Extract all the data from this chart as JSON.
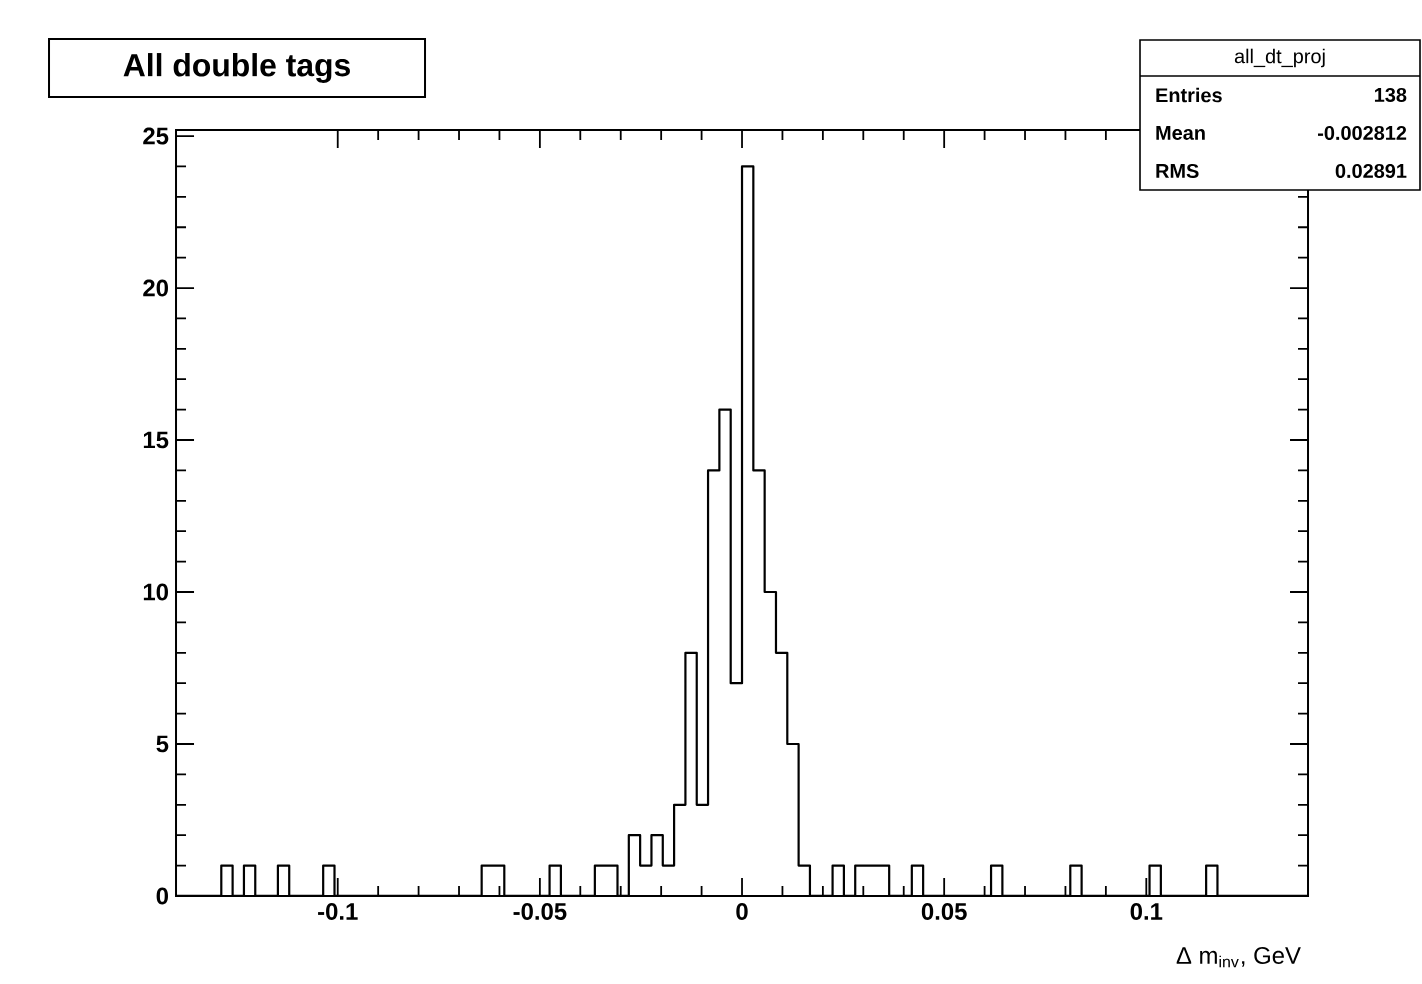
{
  "chart_data": {
    "type": "histogram",
    "title": "All double tags",
    "xlabel": "Δ m$_{inv}$, GeV",
    "bins": [
      -0.14,
      -0.1372,
      -0.1344,
      -0.1316,
      -0.1288,
      -0.126,
      -0.1232,
      -0.1204,
      -0.1176,
      -0.1148,
      -0.112,
      -0.1092,
      -0.1064,
      -0.1036,
      -0.1008,
      -0.098,
      -0.0952,
      -0.0924,
      -0.0896,
      -0.0868,
      -0.084,
      -0.0812,
      -0.0784,
      -0.0756,
      -0.0728,
      -0.07,
      -0.0672,
      -0.0644,
      -0.0616,
      -0.0588,
      -0.056,
      -0.0532,
      -0.0504,
      -0.0476,
      -0.0448,
      -0.042,
      -0.0392,
      -0.0364,
      -0.0336,
      -0.0308,
      -0.028,
      -0.0252,
      -0.0224,
      -0.0196,
      -0.0168,
      -0.014,
      -0.0112,
      -0.0084,
      -0.0056,
      -0.0028,
      0,
      0.0028,
      0.0056,
      0.0084,
      0.0112,
      0.014,
      0.0168,
      0.0196,
      0.0224,
      0.0252,
      0.028,
      0.0308,
      0.0336,
      0.0364,
      0.0392,
      0.042,
      0.0448,
      0.0476,
      0.0504,
      0.0532,
      0.056,
      0.0588,
      0.0616,
      0.0644,
      0.0672,
      0.07,
      0.0728,
      0.0756,
      0.0784,
      0.0812,
      0.084,
      0.0868,
      0.0896,
      0.0924,
      0.0952,
      0.098,
      0.1008,
      0.1036,
      0.1064,
      0.1092,
      0.112,
      0.1148,
      0.1176,
      0.1204,
      0.1232,
      0.126,
      0.1288,
      0.1316,
      0.1344,
      0.1372,
      0.14
    ],
    "values": [
      0,
      0,
      0,
      0,
      1,
      0,
      1,
      0,
      0,
      1,
      0,
      0,
      0,
      1,
      0,
      0,
      0,
      0,
      0,
      0,
      0,
      0,
      0,
      0,
      0,
      0,
      0,
      1,
      1,
      0,
      0,
      0,
      0,
      1,
      0,
      0,
      0,
      1,
      1,
      0,
      2,
      1,
      2,
      1,
      3,
      8,
      3,
      14,
      16,
      7,
      24,
      14,
      10,
      8,
      5,
      1,
      0,
      0,
      1,
      0,
      1,
      1,
      1,
      0,
      0,
      1,
      0,
      0,
      0,
      0,
      0,
      0,
      1,
      0,
      0,
      0,
      0,
      0,
      0,
      1,
      0,
      0,
      0,
      0,
      0,
      0,
      1,
      0,
      0,
      0,
      0,
      1,
      0,
      0,
      0,
      0,
      0,
      0,
      0,
      0
    ],
    "color": "#000000",
    "xlim": [
      -0.14,
      0.14
    ],
    "ylim": [
      0,
      25.2
    ],
    "xticks": [
      -0.1,
      -0.05,
      0,
      0.05,
      0.1
    ],
    "yticks": [
      0,
      5,
      10,
      15,
      20,
      25
    ],
    "annotations": [
      "all_dt_proj",
      "Entries",
      "138",
      "Mean",
      "-0.002812",
      "RMS",
      "0.02891"
    ]
  }
}
